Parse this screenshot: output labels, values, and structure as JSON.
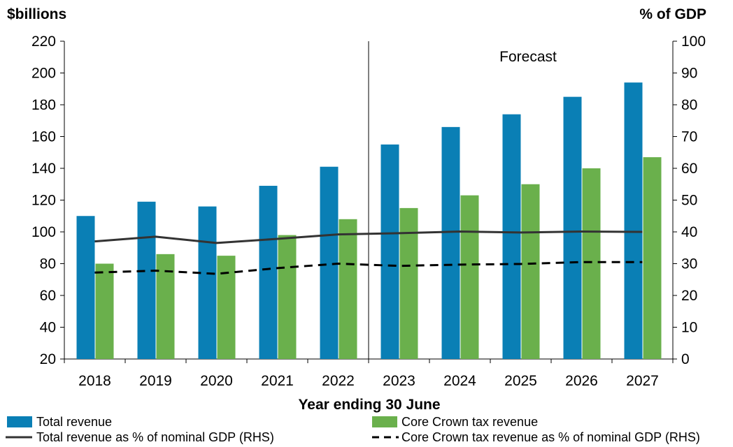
{
  "chart_data": {
    "type": "bar",
    "left_axis_title": "$billions",
    "right_axis_title": "% of GDP",
    "xlabel": "Year ending 30 June",
    "categories": [
      "2018",
      "2019",
      "2020",
      "2021",
      "2022",
      "2023",
      "2024",
      "2025",
      "2026",
      "2027"
    ],
    "ylim_left": [
      20,
      220
    ],
    "yticks_left": [
      20,
      40,
      60,
      80,
      100,
      120,
      140,
      160,
      180,
      200,
      220
    ],
    "ylim_right": [
      0,
      100
    ],
    "yticks_right": [
      0,
      10,
      20,
      30,
      40,
      50,
      60,
      70,
      80,
      90,
      100
    ],
    "annotation": "Forecast",
    "forecast_starts_after": "2022",
    "bar_series": [
      {
        "name": "Total revenue",
        "color": "#0a7fb5",
        "axis": "left",
        "values": [
          110,
          119,
          116,
          129,
          141,
          155,
          166,
          174,
          185,
          194
        ]
      },
      {
        "name": "Core Crown tax revenue",
        "color": "#6ab04c",
        "axis": "left",
        "values": [
          80,
          86,
          85,
          98,
          108,
          115,
          123,
          130,
          140,
          147
        ]
      }
    ],
    "line_series": [
      {
        "name": "Total revenue as % of nominal GDP (RHS)",
        "color": "#333333",
        "style": "solid",
        "axis": "right",
        "values": [
          37.0,
          38.5,
          36.5,
          37.8,
          39.2,
          39.6,
          40.1,
          39.8,
          40.1,
          40.0
        ]
      },
      {
        "name": "Core Crown tax revenue as % of nominal GDP (RHS)",
        "color": "#000000",
        "style": "dashed",
        "axis": "right",
        "values": [
          27.2,
          27.8,
          26.8,
          28.6,
          30.0,
          29.3,
          29.7,
          29.9,
          30.5,
          30.5
        ]
      }
    ],
    "grid": false,
    "legend_position": "bottom"
  }
}
